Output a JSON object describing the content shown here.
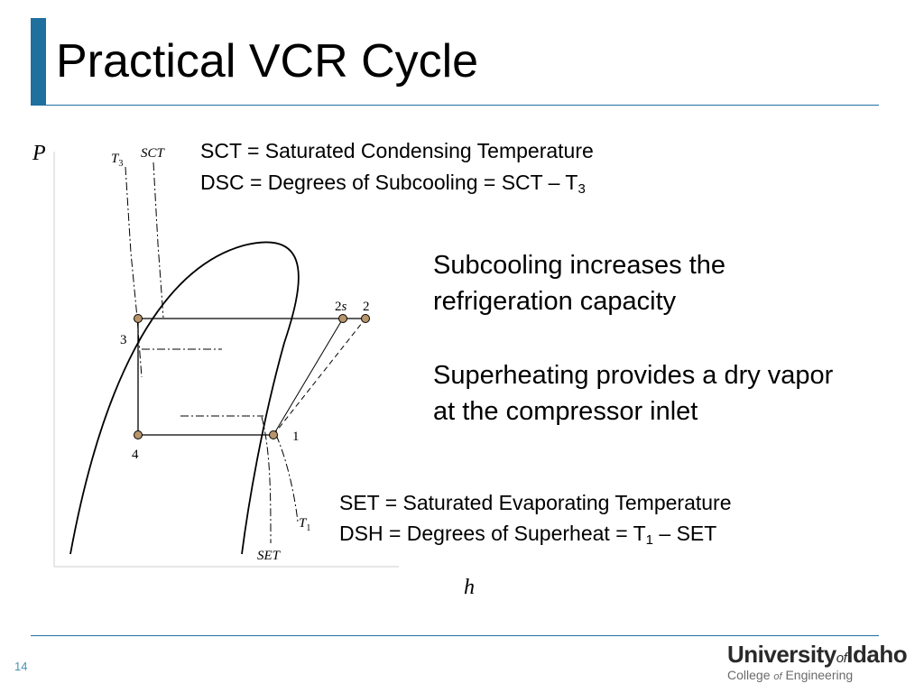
{
  "slide": {
    "title": "Practical VCR Cycle",
    "page_number": "14"
  },
  "colors": {
    "accent": "#1f6f9f",
    "state_point": "#b8946a"
  },
  "diagram": {
    "axes": {
      "y_label": "P",
      "x_label": "h"
    },
    "isotherm_labels": {
      "t3": "T",
      "t3_sub": "3",
      "sct": "SCT",
      "t1": "T",
      "t1_sub": "1",
      "set": "SET"
    },
    "state_labels": {
      "p1": "1",
      "p2s_num": "2",
      "p2s_s": "s",
      "p2": "2",
      "p3": "3",
      "p4": "4"
    }
  },
  "definitions": {
    "sct": "SCT = Saturated Condensing Temperature",
    "dsc_prefix": "DSC = Degrees of Subcooling = SCT – T",
    "dsc_sub": "3",
    "set": "SET = Saturated Evaporating Temperature",
    "dsh_prefix": "DSH = Degrees of Superheat = T",
    "dsh_sub": "1",
    "dsh_suffix": " – SET"
  },
  "notes": {
    "subcooling": "Subcooling increases the refrigeration capacity",
    "superheating": "Superheating provides a dry vapor at the compressor inlet"
  },
  "logo": {
    "university": "University",
    "of": "of",
    "idaho": "Idaho",
    "college": "College",
    "college_of": "of",
    "engineering": "Engineering"
  }
}
